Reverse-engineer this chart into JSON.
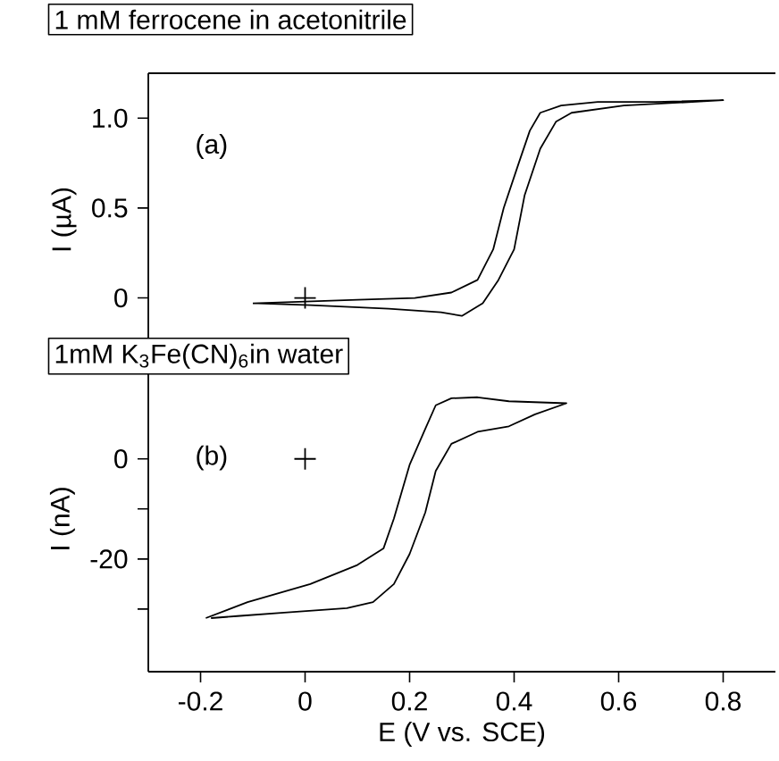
{
  "chart_data": [
    {
      "type": "line",
      "title": "1 mM ferrocene in acetonitrile",
      "ylabel": "I (µA)",
      "annotations": [
        "(a)"
      ],
      "xlim": [
        -0.3,
        0.9
      ],
      "ylim": [
        -0.38,
        1.25
      ],
      "yticks": [
        0,
        0.5,
        {
          "value": 1,
          "label": "1.0"
        }
      ],
      "tick_labels": "y",
      "line_style": "solid",
      "series": [
        {
          "color": "#000000",
          "x": [
            -0.1,
            0.0,
            0.1,
            0.21,
            0.28,
            0.33,
            0.36,
            0.38,
            0.41,
            0.43,
            0.45,
            0.49,
            0.56,
            0.67,
            0.8,
            0.61,
            0.51,
            0.48,
            0.45,
            0.42,
            0.4,
            0.37,
            0.34,
            0.3,
            0.26,
            0.16,
            0.01,
            -0.09
          ],
          "values": [
            -0.03,
            -0.02,
            -0.01,
            0.0,
            0.03,
            0.1,
            0.27,
            0.5,
            0.76,
            0.93,
            1.03,
            1.07,
            1.09,
            1.09,
            1.1,
            1.07,
            1.03,
            0.98,
            0.83,
            0.57,
            0.27,
            0.1,
            -0.03,
            -0.1,
            -0.08,
            -0.06,
            -0.04,
            -0.03
          ]
        },
        {
          "type": "scatter",
          "color": "#000000",
          "marker": "cross",
          "x": [
            0
          ],
          "values": [
            0
          ]
        }
      ]
    },
    {
      "type": "line",
      "title": "1mM K$_{3}$Fe(CN)$_{6}$in water",
      "xlabel": "E (V vs. SCE)",
      "ylabel": "I (nA)",
      "annotations": [
        "(b)"
      ],
      "xlim": [
        -0.3,
        0.9
      ],
      "ylim": [
        -42.5,
        18.5
      ],
      "xticks": [
        -0.2,
        0,
        0.2,
        0.4,
        0.6,
        0.8
      ],
      "yticks": [
        {
          "value": -30,
          "label": null
        },
        -20,
        {
          "value": -10,
          "label": null
        },
        0
      ],
      "line_style": "solid",
      "series": [
        {
          "color": "#000000",
          "x": [
            -0.19,
            -0.11,
            0.01,
            0.1,
            0.15,
            0.17,
            0.2,
            0.23,
            0.25,
            0.28,
            0.33,
            0.39,
            0.5,
            0.44,
            0.39,
            0.33,
            0.28,
            0.25,
            0.23,
            0.2,
            0.17,
            0.13,
            0.08,
            -0.04,
            -0.13,
            -0.18
          ],
          "values": [
            -31.8,
            -28.6,
            -25.0,
            -21.2,
            -17.9,
            -11.9,
            -1.2,
            6.0,
            10.7,
            12.1,
            12.3,
            11.5,
            11.1,
            8.9,
            6.5,
            5.4,
            3.0,
            -2.4,
            -10.7,
            -19.0,
            -25.0,
            -28.6,
            -29.8,
            -30.7,
            -31.4,
            -31.8
          ]
        },
        {
          "type": "scatter",
          "color": "#000000",
          "marker": "cross",
          "x": [
            0
          ],
          "values": [
            0
          ]
        }
      ]
    }
  ]
}
